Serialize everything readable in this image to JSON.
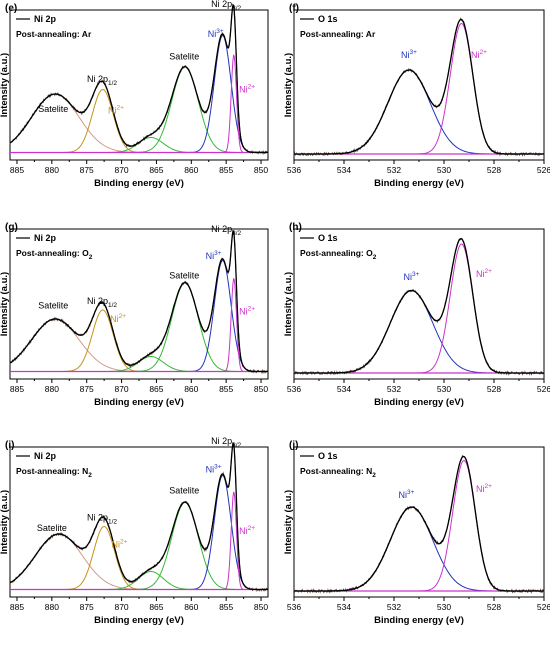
{
  "colors": {
    "envelope": "#000000",
    "raw": "#5a4a3a",
    "background": "#cc33cc",
    "satelite_broad": "#d59a8a",
    "ni2p12_main": "#c49318",
    "satelite_mid": "#33bb33",
    "ni3": "#2233bb",
    "ni2": "#cc33cc",
    "o_ni3": "#2233bb",
    "o_ni2": "#cc33cc"
  },
  "chart_data": [
    {
      "type": "line",
      "panel": "(e)",
      "legend": "Ni 2p",
      "condition_prefix": "Post-annealing: ",
      "condition_gas": "Ar",
      "gas_sub": "",
      "xlabel": "Binding energy (eV)",
      "ylabel": "Intensity (a.u.)",
      "xlim": [
        886,
        849
      ],
      "xticks": [
        885,
        880,
        875,
        870,
        865,
        860,
        855,
        850
      ],
      "ylim": [
        0,
        1
      ],
      "baseline": 0.05,
      "components": [
        {
          "c": 879.5,
          "h": 0.39,
          "w": 3.4,
          "color": "satelite_broad"
        },
        {
          "c": 872.7,
          "h": 0.42,
          "w": 1.5,
          "color": "ni2p12_main"
        },
        {
          "c": 865.8,
          "h": 0.1,
          "w": 1.8,
          "color": "satelite_mid"
        },
        {
          "c": 860.9,
          "h": 0.57,
          "w": 1.9,
          "color": "satelite_mid"
        },
        {
          "c": 855.5,
          "h": 0.78,
          "w": 1.2,
          "color": "ni3"
        },
        {
          "c": 853.9,
          "h": 0.65,
          "w": 0.38,
          "color": "ni2"
        }
      ],
      "annotations": [
        {
          "text": "Ni 2p",
          "sub": "3/2",
          "x": 855.0,
          "y": 1.02,
          "color": "#000000"
        },
        {
          "text": "Ni",
          "sup": "3+",
          "x": 856.5,
          "y": 0.82,
          "color": "#2233bb"
        },
        {
          "text": "Ni",
          "sup": "2+",
          "x": 852.0,
          "y": 0.45,
          "color": "#cc33cc"
        },
        {
          "text": "Satelite",
          "x": 861.0,
          "y": 0.67,
          "color": "#000000"
        },
        {
          "text": "Ni 2p",
          "sub": "1/2",
          "x": 872.8,
          "y": 0.52,
          "color": "#000000"
        },
        {
          "text": "Ni",
          "sup": "2+",
          "x": 870.8,
          "y": 0.31,
          "color": "#c49318"
        },
        {
          "text": "Satelite",
          "x": 879.8,
          "y": 0.32,
          "color": "#000000"
        }
      ]
    },
    {
      "type": "line",
      "panel": "(f)",
      "legend": "O 1s",
      "condition_prefix": "Post-annealing: ",
      "condition_gas": "Ar",
      "gas_sub": "",
      "xlabel": "Binding energy (eV)",
      "ylabel": "Intensity (a.u.)",
      "xlim": [
        536,
        526
      ],
      "xticks": [
        536,
        534,
        532,
        530,
        528,
        526
      ],
      "ylim": [
        0,
        1
      ],
      "baseline": 0.04,
      "components": [
        {
          "c": 531.4,
          "h": 0.56,
          "w": 0.85,
          "color": "o_ni3"
        },
        {
          "c": 529.3,
          "h": 0.87,
          "w": 0.45,
          "color": "o_ni2"
        }
      ],
      "annotations": [
        {
          "text": "Ni",
          "sup": "3+",
          "x": 531.4,
          "y": 0.68,
          "color": "#2233bb"
        },
        {
          "text": "Ni",
          "sup": "2+",
          "x": 528.6,
          "y": 0.68,
          "color": "#cc33cc"
        }
      ]
    },
    {
      "type": "line",
      "panel": "(g)",
      "legend": "Ni 2p",
      "condition_prefix": "Post-annealing: ",
      "condition_gas": "O",
      "gas_sub": "2",
      "xlabel": "Binding energy (eV)",
      "ylabel": "Intensity (a.u.)",
      "xlim": [
        886,
        849
      ],
      "xticks": [
        885,
        880,
        875,
        870,
        865,
        860,
        855,
        850
      ],
      "ylim": [
        0,
        1
      ],
      "baseline": 0.05,
      "components": [
        {
          "c": 879.5,
          "h": 0.35,
          "w": 3.4,
          "color": "satelite_broad"
        },
        {
          "c": 872.7,
          "h": 0.41,
          "w": 1.5,
          "color": "ni2p12_main"
        },
        {
          "c": 865.8,
          "h": 0.1,
          "w": 1.8,
          "color": "satelite_mid"
        },
        {
          "c": 860.9,
          "h": 0.59,
          "w": 1.9,
          "color": "satelite_mid"
        },
        {
          "c": 855.5,
          "h": 0.74,
          "w": 1.2,
          "color": "ni3"
        },
        {
          "c": 853.9,
          "h": 0.62,
          "w": 0.38,
          "color": "ni2"
        }
      ],
      "annotations": [
        {
          "text": "Ni 2p",
          "sub": "3/2",
          "x": 855.0,
          "y": 0.98,
          "color": "#000000"
        },
        {
          "text": "Ni",
          "sup": "3+",
          "x": 856.8,
          "y": 0.8,
          "color": "#2233bb"
        },
        {
          "text": "Ni",
          "sup": "2+",
          "x": 852.0,
          "y": 0.43,
          "color": "#cc33cc"
        },
        {
          "text": "Satelite",
          "x": 861.0,
          "y": 0.67,
          "color": "#000000"
        },
        {
          "text": "Ni 2p",
          "sub": "1/2",
          "x": 872.8,
          "y": 0.5,
          "color": "#000000"
        },
        {
          "text": "Ni",
          "sup": "2+",
          "x": 870.5,
          "y": 0.38,
          "color": "#c49318"
        },
        {
          "text": "Satelite",
          "x": 879.8,
          "y": 0.47,
          "color": "#000000"
        }
      ]
    },
    {
      "type": "line",
      "panel": "(h)",
      "legend": "O 1s",
      "condition_prefix": "Post-annealing: ",
      "condition_gas": "O",
      "gas_sub": "2",
      "xlabel": "Binding energy (eV)",
      "ylabel": "Intensity (a.u.)",
      "xlim": [
        536,
        526
      ],
      "xticks": [
        536,
        534,
        532,
        530,
        528,
        526
      ],
      "ylim": [
        0,
        1
      ],
      "baseline": 0.04,
      "components": [
        {
          "c": 531.3,
          "h": 0.55,
          "w": 0.85,
          "color": "o_ni3"
        },
        {
          "c": 529.3,
          "h": 0.86,
          "w": 0.45,
          "color": "o_ni2"
        }
      ],
      "annotations": [
        {
          "text": "Ni",
          "sup": "3+",
          "x": 531.3,
          "y": 0.66,
          "color": "#2233bb"
        },
        {
          "text": "Ni",
          "sup": "2+",
          "x": 528.4,
          "y": 0.68,
          "color": "#cc33cc"
        }
      ]
    },
    {
      "type": "line",
      "panel": "(i)",
      "legend": "Ni 2p",
      "condition_prefix": "Post-annealing: ",
      "condition_gas": "N",
      "gas_sub": "2",
      "xlabel": "Binding energy (eV)",
      "ylabel": "Intensity (a.u.)",
      "xlim": [
        886,
        849
      ],
      "xticks": [
        885,
        880,
        875,
        870,
        865,
        860,
        855,
        850
      ],
      "ylim": [
        0,
        1
      ],
      "baseline": 0.05,
      "components": [
        {
          "c": 879.0,
          "h": 0.37,
          "w": 3.4,
          "color": "satelite_broad"
        },
        {
          "c": 872.5,
          "h": 0.42,
          "w": 1.5,
          "color": "ni2p12_main"
        },
        {
          "c": 865.8,
          "h": 0.12,
          "w": 1.8,
          "color": "satelite_mid"
        },
        {
          "c": 860.9,
          "h": 0.58,
          "w": 1.9,
          "color": "satelite_mid"
        },
        {
          "c": 855.5,
          "h": 0.76,
          "w": 1.2,
          "color": "ni3"
        },
        {
          "c": 853.9,
          "h": 0.65,
          "w": 0.38,
          "color": "ni2"
        }
      ],
      "annotations": [
        {
          "text": "Ni 2p",
          "sub": "3/2",
          "x": 855.0,
          "y": 1.02,
          "color": "#000000"
        },
        {
          "text": "Ni",
          "sup": "3+",
          "x": 856.8,
          "y": 0.83,
          "color": "#2233bb"
        },
        {
          "text": "Ni",
          "sup": "2+",
          "x": 852.0,
          "y": 0.42,
          "color": "#cc33cc"
        },
        {
          "text": "Satelite",
          "x": 861.0,
          "y": 0.69,
          "color": "#000000"
        },
        {
          "text": "Ni 2p",
          "sub": "1/2",
          "x": 872.8,
          "y": 0.51,
          "color": "#000000"
        },
        {
          "text": "Ni",
          "sup": "2+",
          "x": 870.3,
          "y": 0.33,
          "color": "#c49318"
        },
        {
          "text": "Satelite",
          "x": 880.0,
          "y": 0.44,
          "color": "#000000"
        }
      ]
    },
    {
      "type": "line",
      "panel": "(j)",
      "legend": "O 1s",
      "condition_prefix": "Post-annealing: ",
      "condition_gas": "N",
      "gas_sub": "2",
      "xlabel": "Binding energy (eV)",
      "ylabel": "Intensity (a.u.)",
      "xlim": [
        536,
        526
      ],
      "xticks": [
        536,
        534,
        532,
        530,
        528,
        526
      ],
      "ylim": [
        0,
        1
      ],
      "baseline": 0.04,
      "components": [
        {
          "c": 531.3,
          "h": 0.56,
          "w": 0.85,
          "color": "o_ni3"
        },
        {
          "c": 529.2,
          "h": 0.87,
          "w": 0.45,
          "color": "o_ni2"
        }
      ],
      "annotations": [
        {
          "text": "Ni",
          "sup": "3+",
          "x": 531.5,
          "y": 0.66,
          "color": "#2233bb"
        },
        {
          "text": "Ni",
          "sup": "2+",
          "x": 528.4,
          "y": 0.7,
          "color": "#cc33cc"
        }
      ]
    }
  ]
}
